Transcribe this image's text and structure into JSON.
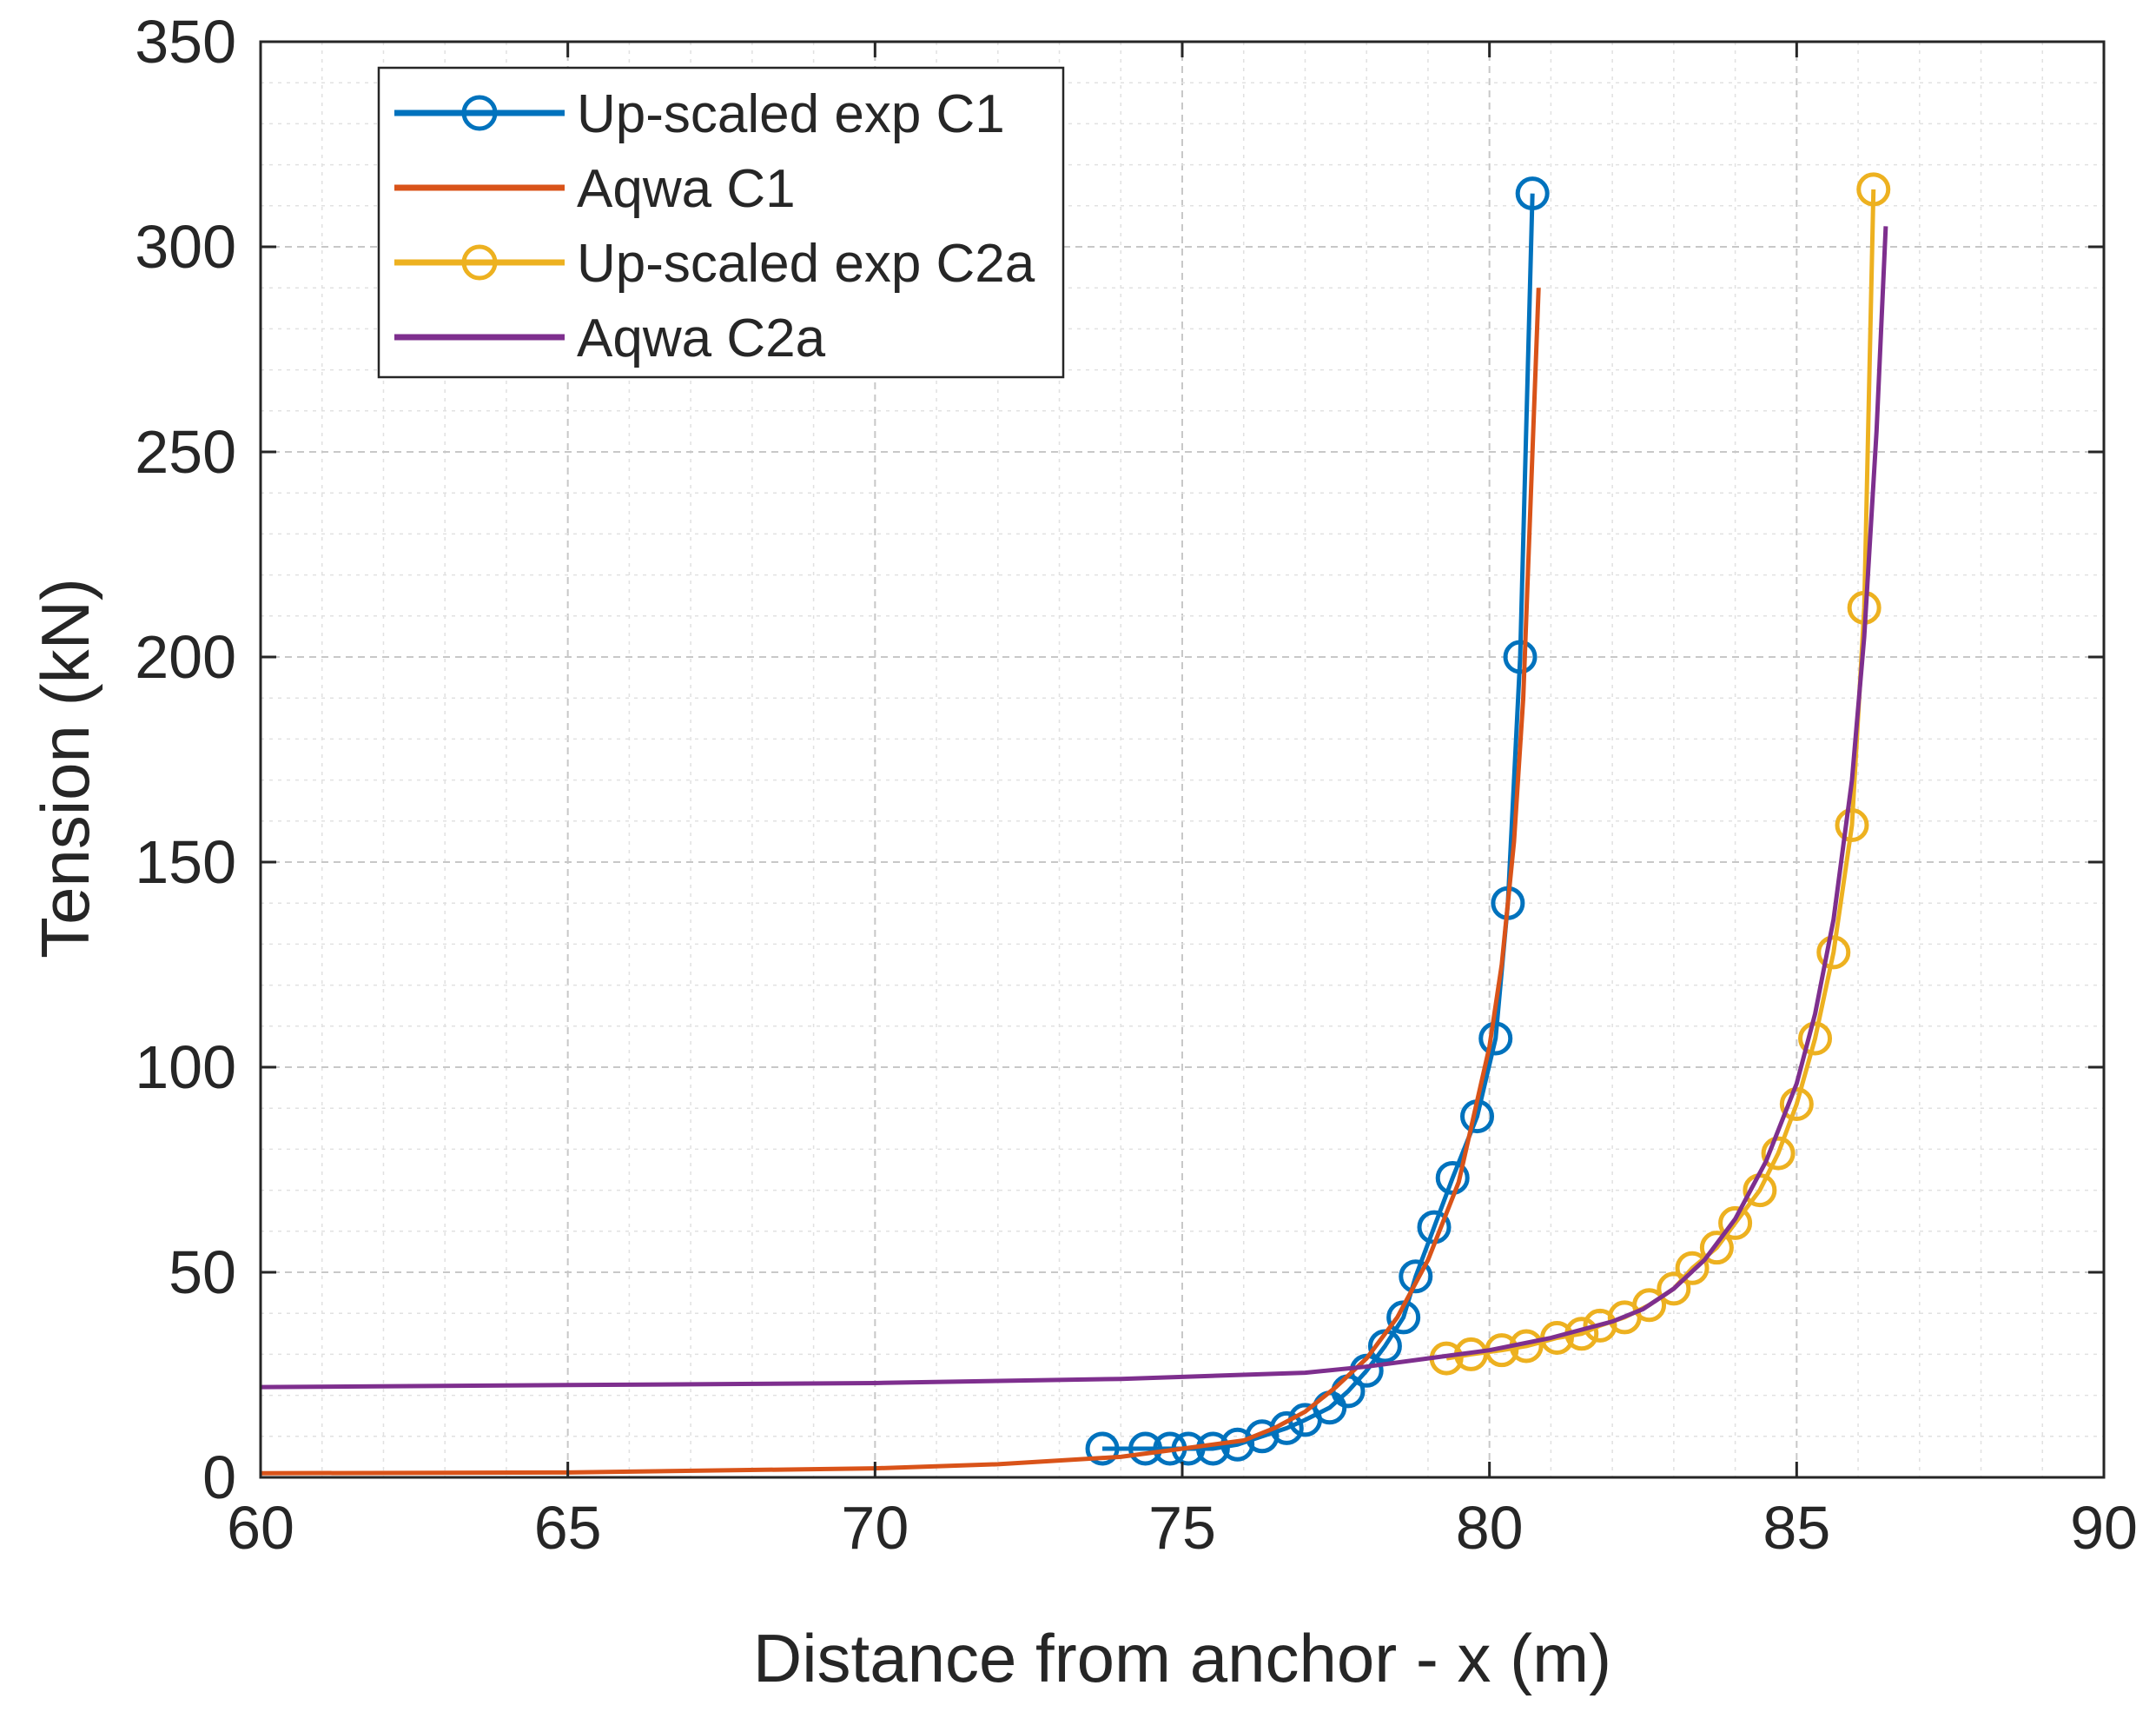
{
  "chart_data": {
    "type": "line",
    "title": "",
    "xlabel": "Distance from anchor - x (m)",
    "ylabel": "Tension (kN)",
    "xlim": [
      60,
      90
    ],
    "ylim": [
      0,
      350
    ],
    "xticks": [
      60,
      65,
      70,
      75,
      80,
      85,
      90
    ],
    "yticks": [
      0,
      50,
      100,
      150,
      200,
      250,
      300,
      350
    ],
    "grid": "major and minor, dashed",
    "legend_position": "top-left",
    "series": [
      {
        "name": "Up-scaled exp C1",
        "color": "#0072BD",
        "style": "line-with-circle-markers",
        "x": [
          73.7,
          74.4,
          74.8,
          75.1,
          75.5,
          75.9,
          76.3,
          76.7,
          77.0,
          77.4,
          77.7,
          78.0,
          78.3,
          78.6,
          78.8,
          79.1,
          79.4,
          79.8,
          80.1,
          80.3,
          80.5,
          80.7
        ],
        "y": [
          7,
          7,
          7,
          7,
          7,
          8,
          10,
          12,
          14,
          17,
          21,
          26,
          32,
          39,
          49,
          61,
          73,
          88,
          107,
          140,
          200,
          313
        ]
      },
      {
        "name": "Aqwa C1",
        "color": "#D95319",
        "style": "line",
        "x": [
          60,
          65,
          70,
          72,
          74,
          75,
          76,
          76.5,
          77,
          77.5,
          78,
          78.5,
          79,
          79.5,
          80,
          80.2,
          80.4,
          80.55,
          80.65,
          80.75,
          80.8
        ],
        "y": [
          1,
          1.2,
          2.2,
          3.2,
          5,
          7,
          9,
          12,
          16,
          22,
          29,
          39,
          53,
          72,
          105,
          125,
          155,
          190,
          230,
          270,
          290
        ]
      },
      {
        "name": "Up-scaled exp C2a",
        "color": "#EDB120",
        "style": "line-with-circle-markers",
        "x": [
          79.3,
          79.7,
          80.2,
          80.6,
          81.1,
          81.5,
          81.8,
          82.2,
          82.6,
          83.0,
          83.3,
          83.7,
          84.0,
          84.4,
          84.7,
          85.0,
          85.3,
          85.6,
          85.9,
          86.1,
          86.25
        ],
        "y": [
          29,
          30,
          31,
          32,
          34,
          35,
          37,
          39,
          42,
          46,
          51,
          56,
          62,
          70,
          79,
          91,
          107,
          128,
          159,
          212,
          314
        ]
      },
      {
        "name": "Aqwa C2a",
        "color": "#7E2F8E",
        "style": "line",
        "x": [
          60,
          65,
          70,
          74,
          77,
          78,
          79,
          80,
          81,
          82,
          82.5,
          83,
          83.5,
          84,
          84.5,
          85,
          85.3,
          85.6,
          85.9,
          86.1,
          86.3,
          86.45
        ],
        "y": [
          22,
          22.5,
          23,
          24,
          25.5,
          27,
          29,
          31,
          34,
          38,
          41,
          46,
          53,
          63,
          77,
          96,
          113,
          136,
          170,
          205,
          255,
          305
        ]
      }
    ]
  }
}
